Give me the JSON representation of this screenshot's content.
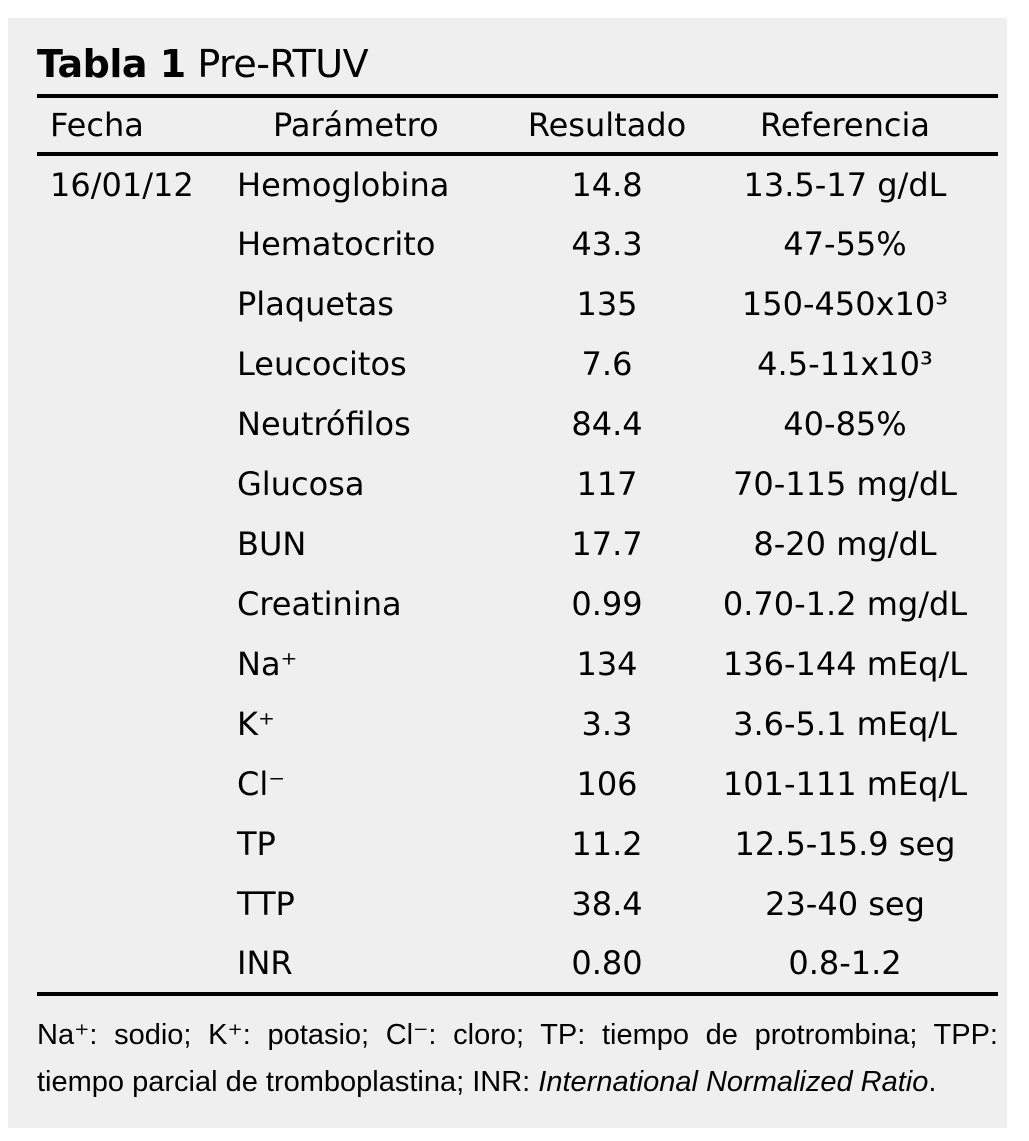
{
  "title": {
    "bold": "Tabla 1",
    "rest": "Pre-RTUV"
  },
  "colors": {
    "card_background": "#efefef",
    "text": "#000000",
    "rule": "#000000",
    "page_background": "#ffffff"
  },
  "table": {
    "headers": {
      "date": "Fecha",
      "parameter": "Parámetro",
      "result": "Resultado",
      "reference": "Referencia"
    },
    "rows": [
      {
        "date": "16/01/12",
        "parameter": "Hemoglobina",
        "result": "14.8",
        "reference": "13.5-17 g/dL"
      },
      {
        "date": "",
        "parameter": "Hematocrito",
        "result": "43.3",
        "reference": "47-55%"
      },
      {
        "date": "",
        "parameter": "Plaquetas",
        "result": "135",
        "reference": "150-450x10³"
      },
      {
        "date": "",
        "parameter": "Leucocitos",
        "result": "7.6",
        "reference": "4.5-11x10³"
      },
      {
        "date": "",
        "parameter": "Neutrófilos",
        "result": "84.4",
        "reference": "40-85%"
      },
      {
        "date": "",
        "parameter": "Glucosa",
        "result": "117",
        "reference": "70-115 mg/dL"
      },
      {
        "date": "",
        "parameter": "BUN",
        "result": "17.7",
        "reference": "8-20 mg/dL"
      },
      {
        "date": "",
        "parameter": "Creatinina",
        "result": "0.99",
        "reference": "0.70-1.2 mg/dL"
      },
      {
        "date": "",
        "parameter": "Na⁺",
        "result": "134",
        "reference": "136-144 mEq/L"
      },
      {
        "date": "",
        "parameter": "K⁺",
        "result": "3.3",
        "reference": "3.6-5.1 mEq/L"
      },
      {
        "date": "",
        "parameter": "Cl⁻",
        "result": "106",
        "reference": "101-111 mEq/L"
      },
      {
        "date": "",
        "parameter": "TP",
        "result": "11.2",
        "reference": "12.5-15.9 seg"
      },
      {
        "date": "",
        "parameter": "TTP",
        "result": "38.4",
        "reference": "23-40 seg"
      },
      {
        "date": "",
        "parameter": "INR",
        "result": "0.80",
        "reference": "0.8-1.2"
      }
    ]
  },
  "footnote": {
    "regular": "Na⁺: sodio; K⁺: potasio; Cl⁻: cloro; TP: tiempo de protrombina; TPP: tiempo parcial de tromboplastina; INR: ",
    "italic": "International Normalized Ratio",
    "suffix": "."
  }
}
